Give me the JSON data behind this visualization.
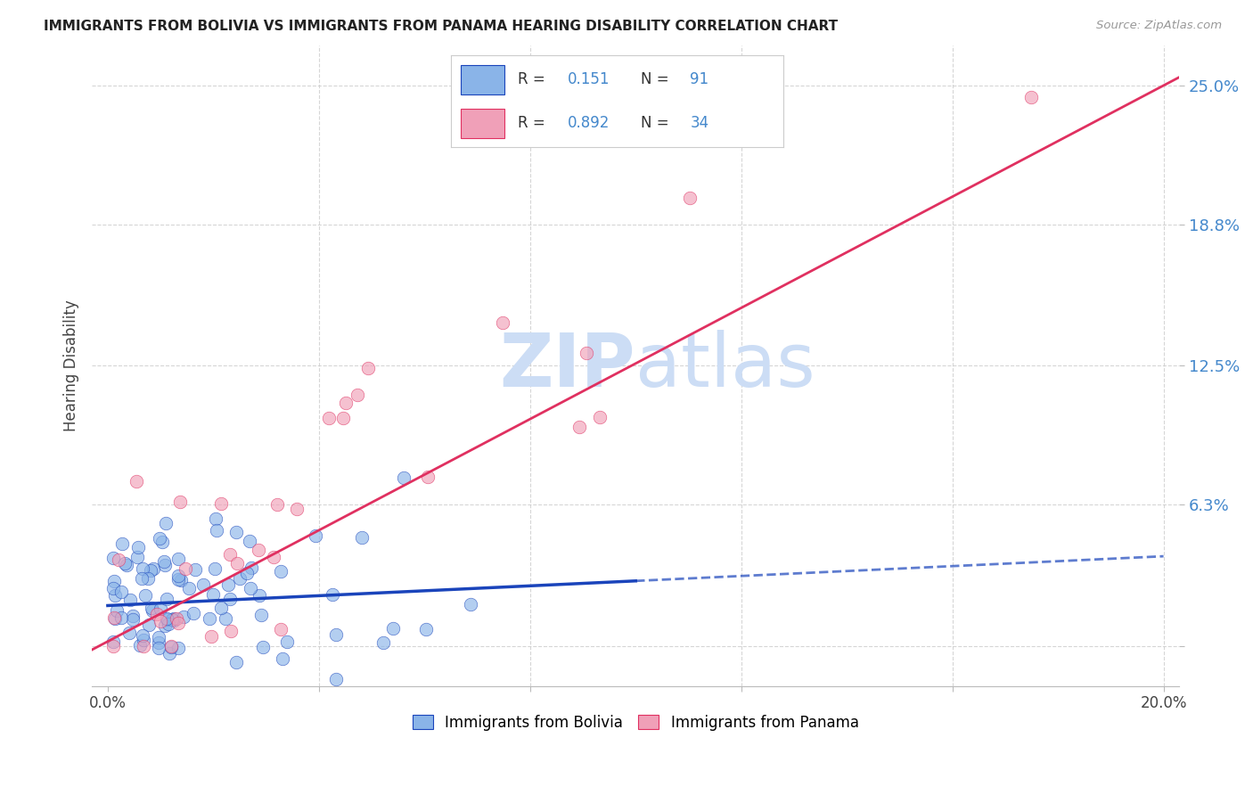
{
  "title": "IMMIGRANTS FROM BOLIVIA VS IMMIGRANTS FROM PANAMA HEARING DISABILITY CORRELATION CHART",
  "source": "Source: ZipAtlas.com",
  "ylabel": "Hearing Disability",
  "r_bolivia": 0.151,
  "n_bolivia": 91,
  "r_panama": 0.892,
  "n_panama": 34,
  "color_bolivia": "#8ab4e8",
  "color_panama": "#f0a0b8",
  "line_color_bolivia": "#1a44bb",
  "line_color_panama": "#e03060",
  "legend_label_bolivia": "Immigrants from Bolivia",
  "legend_label_panama": "Immigrants from Panama",
  "background_color": "#ffffff",
  "grid_color": "#cccccc",
  "watermark_color": "#ccddf5",
  "ytick_color": "#4488cc",
  "ytick_vals": [
    0.0,
    0.063,
    0.125,
    0.188,
    0.25
  ],
  "ytick_labels": [
    "",
    "6.3%",
    "12.5%",
    "18.8%",
    "25.0%"
  ],
  "xlim": [
    0.0,
    0.2
  ],
  "ylim": [
    0.0,
    0.265
  ]
}
